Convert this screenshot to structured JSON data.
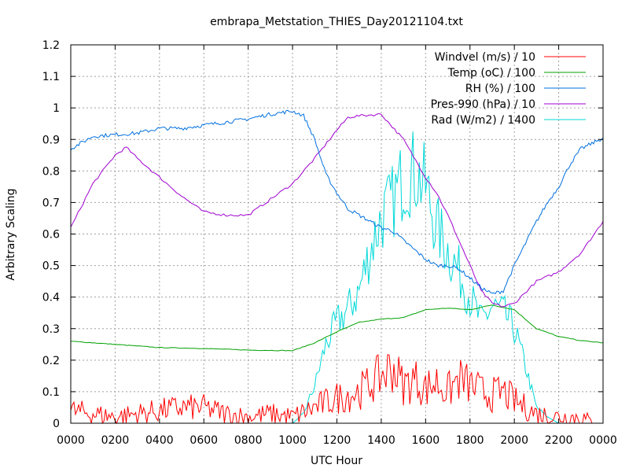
{
  "chart_data": {
    "type": "line",
    "title": "embrapa_Metstation_THIES_Day20121104.txt",
    "xlabel": "UTC Hour",
    "ylabel": "Arbitrary Scaling",
    "xlim": [
      0,
      2400
    ],
    "ylim": [
      0,
      1.2
    ],
    "grid": true,
    "legend_position": "top-right",
    "x_ticks": [
      "0000",
      "0200",
      "0400",
      "0600",
      "0800",
      "1000",
      "1200",
      "1400",
      "1600",
      "1800",
      "2000",
      "2200",
      "0000"
    ],
    "y_ticks": [
      "0",
      "0.1",
      "0.2",
      "0.3",
      "0.4",
      "0.5",
      "0.6",
      "0.7",
      "0.8",
      "0.9",
      "1",
      "1.1",
      "1.2"
    ],
    "series": [
      {
        "name": "Windvel (m/s) / 10",
        "color": "#ff0000",
        "x": [
          0,
          100,
          200,
          300,
          400,
          500,
          600,
          700,
          800,
          900,
          1000,
          1100,
          1200,
          1300,
          1400,
          1450,
          1500,
          1550,
          1600,
          1650,
          1700,
          1750,
          1800,
          1850,
          1900,
          1950,
          2000,
          2100,
          2200,
          2300,
          2350
        ],
        "y": [
          0.04,
          0.03,
          0.02,
          0.03,
          0.04,
          0.05,
          0.05,
          0.03,
          0.02,
          0.03,
          0.02,
          0.05,
          0.08,
          0.1,
          0.15,
          0.18,
          0.12,
          0.14,
          0.11,
          0.13,
          0.1,
          0.14,
          0.12,
          0.1,
          0.09,
          0.1,
          0.07,
          0.03,
          0.02,
          0.02,
          0.0
        ]
      },
      {
        "name": "Temp (oC) / 100",
        "color": "#00a000",
        "x": [
          0,
          200,
          400,
          600,
          800,
          1000,
          1100,
          1200,
          1300,
          1400,
          1500,
          1600,
          1700,
          1800,
          1900,
          2000,
          2100,
          2200,
          2300,
          2400
        ],
        "y": [
          0.26,
          0.25,
          0.24,
          0.237,
          0.232,
          0.23,
          0.255,
          0.29,
          0.32,
          0.33,
          0.335,
          0.36,
          0.365,
          0.36,
          0.375,
          0.36,
          0.3,
          0.275,
          0.262,
          0.255
        ]
      },
      {
        "name": "RH (%) / 100",
        "color": "#0070e0",
        "x": [
          0,
          100,
          200,
          300,
          400,
          500,
          600,
          700,
          800,
          900,
          1000,
          1050,
          1100,
          1150,
          1200,
          1250,
          1300,
          1350,
          1400,
          1450,
          1500,
          1550,
          1600,
          1650,
          1700,
          1750,
          1800,
          1850,
          1900,
          1950,
          2000,
          2050,
          2100,
          2150,
          2200,
          2250,
          2300,
          2400
        ],
        "y": [
          0.87,
          0.91,
          0.915,
          0.92,
          0.935,
          0.935,
          0.945,
          0.955,
          0.965,
          0.98,
          0.99,
          0.975,
          0.9,
          0.79,
          0.73,
          0.68,
          0.66,
          0.64,
          0.62,
          0.61,
          0.58,
          0.55,
          0.52,
          0.5,
          0.5,
          0.49,
          0.46,
          0.43,
          0.41,
          0.42,
          0.5,
          0.57,
          0.64,
          0.7,
          0.75,
          0.82,
          0.87,
          0.905
        ]
      },
      {
        "name": "Pres-990 (hPa) / 10",
        "color": "#a000d0",
        "x": [
          0,
          100,
          200,
          250,
          300,
          400,
          500,
          600,
          700,
          800,
          900,
          1000,
          1100,
          1200,
          1250,
          1300,
          1400,
          1450,
          1500,
          1600,
          1650,
          1700,
          1750,
          1800,
          1850,
          1900,
          1950,
          2000,
          2100,
          2200,
          2300,
          2400
        ],
        "y": [
          0.62,
          0.76,
          0.85,
          0.875,
          0.84,
          0.78,
          0.72,
          0.67,
          0.66,
          0.66,
          0.71,
          0.76,
          0.84,
          0.93,
          0.97,
          0.975,
          0.98,
          0.94,
          0.9,
          0.78,
          0.73,
          0.66,
          0.58,
          0.5,
          0.42,
          0.38,
          0.37,
          0.38,
          0.45,
          0.48,
          0.54,
          0.64
        ]
      },
      {
        "name": "Rad (W/m2) / 1400",
        "color": "#00d8d8",
        "x": [
          0,
          1000,
          1050,
          1100,
          1150,
          1200,
          1250,
          1300,
          1350,
          1400,
          1450,
          1500,
          1550,
          1600,
          1650,
          1700,
          1750,
          1800,
          1850,
          1900,
          1950,
          2000,
          2050,
          2100,
          2150,
          2200,
          2400
        ],
        "y": [
          0,
          0,
          0.03,
          0.12,
          0.25,
          0.32,
          0.36,
          0.42,
          0.55,
          0.65,
          0.7,
          0.78,
          0.8,
          0.75,
          0.62,
          0.55,
          0.48,
          0.4,
          0.32,
          0.37,
          0.35,
          0.3,
          0.18,
          0.05,
          0.02,
          0,
          0
        ]
      }
    ]
  }
}
